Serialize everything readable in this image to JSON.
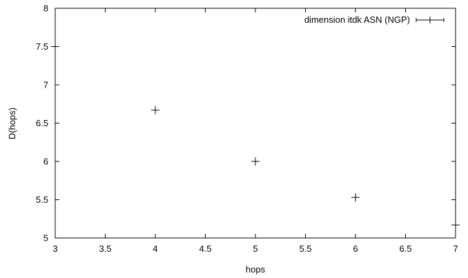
{
  "chart_data": {
    "type": "scatter",
    "title": "",
    "xlabel": "hops",
    "ylabel": "D(hops)",
    "xlim": [
      3,
      7
    ],
    "ylim": [
      5,
      8
    ],
    "x_ticks": [
      "3",
      "3.5",
      "4",
      "4.5",
      "5",
      "5.5",
      "6",
      "6.5",
      "7"
    ],
    "y_ticks": [
      "5",
      "5.5",
      "6",
      "6.5",
      "7",
      "7.5",
      "8"
    ],
    "grid": false,
    "legend_position": "top-right",
    "series": [
      {
        "name": "dimension itdk ASN (NGP)",
        "marker": "plus-with-errorbars",
        "color": "#000000",
        "points": [
          {
            "x": 3,
            "y": 7.5,
            "yerr": 0.25
          },
          {
            "x": 4,
            "y": 6.67,
            "yerr": 0.03
          },
          {
            "x": 5,
            "y": 6.0,
            "yerr": 0.01
          },
          {
            "x": 6,
            "y": 5.53,
            "yerr": 0.03
          },
          {
            "x": 7,
            "y": 5.17,
            "yerr": 0.0
          }
        ]
      }
    ]
  }
}
